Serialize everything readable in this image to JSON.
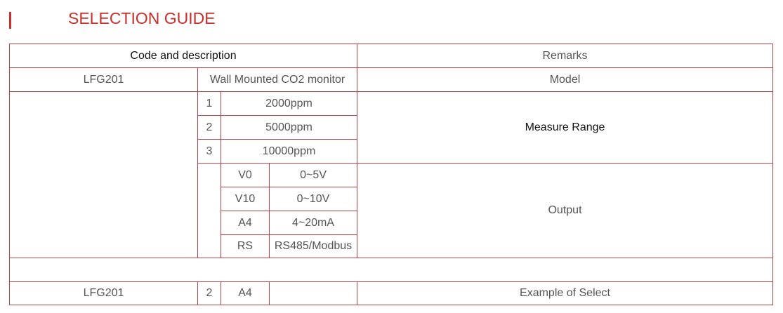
{
  "title": "SELECTION GUIDE",
  "header": {
    "code": "Code and description",
    "remarks": "Remarks"
  },
  "model_row": {
    "code": "LFG201",
    "description": "Wall Mounted CO2 monitor",
    "remark": "Model"
  },
  "ranges": [
    {
      "code": "1",
      "value": "2000ppm"
    },
    {
      "code": "2",
      "value": "5000ppm"
    },
    {
      "code": "3",
      "value": "10000ppm"
    }
  ],
  "range_remark": "Measure Range",
  "outputs": [
    {
      "code": "V0",
      "value": "0~5V"
    },
    {
      "code": "V10",
      "value": "0~10V"
    },
    {
      "code": "A4",
      "value": "4~20mA"
    },
    {
      "code": "RS",
      "value": "RS485/Modbus"
    }
  ],
  "output_remark": "Output",
  "example": {
    "model": "LFG201",
    "range": "2",
    "output": "A4",
    "remark": "Example of Select"
  }
}
